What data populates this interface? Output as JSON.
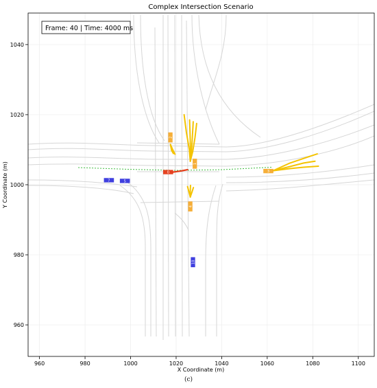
{
  "chart_data": {
    "type": "scatter",
    "title": "Complex Intersection Scenario",
    "xlabel": "X Coordinate (m)",
    "ylabel": "Y Coordinate (m)",
    "xlim": [
      955,
      1107
    ],
    "ylim": [
      951,
      1049
    ],
    "x_ticks": [
      960,
      980,
      1000,
      1020,
      1040,
      1060,
      1080,
      1100
    ],
    "y_ticks": [
      960,
      980,
      1000,
      1020,
      1040
    ],
    "grid": true,
    "info_box": "Frame: 40 | Time: 4000 ms",
    "caption": "(c)",
    "colors": {
      "ego": "#e53a17",
      "neighbor": "#f5a623",
      "background_vehicle": "#2b2bdc",
      "prediction": "#f4c300",
      "ego_path": "#3dbb3d",
      "lanes": "#d6d6d6"
    },
    "vehicles": [
      {
        "label": "0",
        "role": "ego",
        "x": 1016.5,
        "y": 1003.6,
        "heading_deg": 0
      },
      {
        "label": "1",
        "role": "neighbor",
        "x": 1028.2,
        "y": 1006.0,
        "heading_deg": 90
      },
      {
        "label": "2",
        "role": "neighbor",
        "x": 1017.5,
        "y": 1013.5,
        "heading_deg": 90
      },
      {
        "label": "3",
        "role": "neighbor",
        "x": 1060.5,
        "y": 1003.9,
        "heading_deg": 0
      },
      {
        "label": "4",
        "role": "neighbor",
        "x": 1026.2,
        "y": 993.8,
        "heading_deg": 90
      },
      {
        "label": "5",
        "role": "background",
        "x": 997.5,
        "y": 1001.1,
        "heading_deg": 0
      },
      {
        "label": "7",
        "role": "background",
        "x": 990.5,
        "y": 1001.3,
        "heading_deg": 0
      },
      {
        "label": "10",
        "role": "background",
        "x": 1027.4,
        "y": 977.9,
        "heading_deg": 90
      }
    ],
    "ego_path": {
      "x": [
        977,
        1000,
        1020,
        1040,
        1062
      ],
      "y": [
        1004.9,
        1004.4,
        1004.1,
        1004.3,
        1005.0
      ]
    },
    "ego_history": {
      "x": [
        1018.5,
        1022.0,
        1025.0
      ],
      "y": [
        1003.6,
        1003.9,
        1004.3
      ]
    },
    "predictions": [
      {
        "vehicle": "1",
        "x": [
          1026.2,
          1025.8,
          1024.5,
          1023.5
        ],
        "y": [
          1006.7,
          1010.0,
          1015.0,
          1020.0
        ]
      },
      {
        "vehicle": "1",
        "x": [
          1026.2,
          1026.3,
          1026.1,
          1025.9
        ],
        "y": [
          1006.7,
          1010.0,
          1015.0,
          1018.5
        ]
      },
      {
        "vehicle": "1",
        "x": [
          1026.2,
          1026.8,
          1027.2,
          1027.5
        ],
        "y": [
          1006.7,
          1010.0,
          1014.5,
          1018.0
        ]
      },
      {
        "vehicle": "1",
        "x": [
          1026.2,
          1027.3,
          1028.3,
          1029.0
        ],
        "y": [
          1006.7,
          1009.5,
          1013.5,
          1017.5
        ]
      },
      {
        "vehicle": "2",
        "x": [
          1017.5,
          1018.5,
          1019.5
        ],
        "y": [
          1011.5,
          1010.0,
          1008.7
        ]
      },
      {
        "vehicle": "2",
        "x": [
          1017.5,
          1018.0,
          1018.8
        ],
        "y": [
          1011.5,
          1009.8,
          1008.9
        ]
      },
      {
        "vehicle": "3",
        "x": [
          1062.5,
          1070.0,
          1076.0,
          1082.0
        ],
        "y": [
          1004.0,
          1006.2,
          1007.5,
          1008.8
        ]
      },
      {
        "vehicle": "3",
        "x": [
          1062.5,
          1070.0,
          1076.0,
          1081.0
        ],
        "y": [
          1004.0,
          1005.2,
          1006.2,
          1006.7
        ]
      },
      {
        "vehicle": "3",
        "x": [
          1062.5,
          1070.0,
          1076.0,
          1082.5
        ],
        "y": [
          1004.0,
          1004.6,
          1005.0,
          1005.3
        ]
      },
      {
        "vehicle": "4",
        "x": [
          1026.2,
          1025.6,
          1025.0
        ],
        "y": [
          996.5,
          998.0,
          999.5
        ]
      },
      {
        "vehicle": "4",
        "x": [
          1026.2,
          1026.2,
          1026.3
        ],
        "y": [
          996.5,
          998.2,
          999.8
        ]
      },
      {
        "vehicle": "4",
        "x": [
          1026.2,
          1026.9,
          1027.6
        ],
        "y": [
          996.5,
          997.8,
          999.2
        ]
      }
    ]
  }
}
